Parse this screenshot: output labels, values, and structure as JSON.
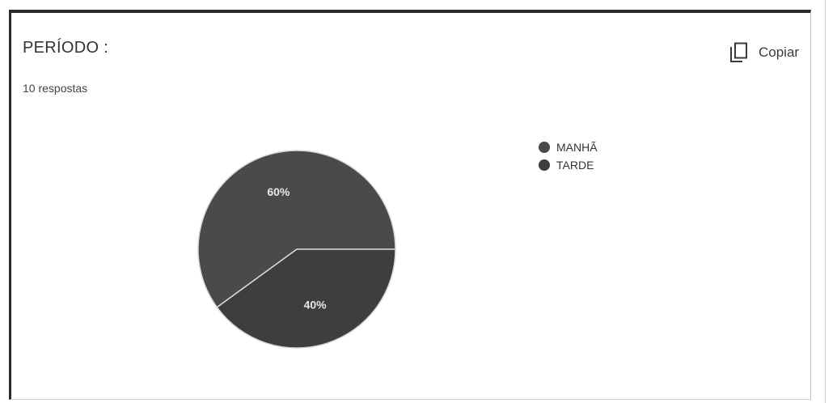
{
  "card": {
    "title": "PERÍODO :",
    "subtitle": "10 respostas",
    "copy_label": "Copiar",
    "copy_icon": "copy-icon"
  },
  "chart_data": {
    "type": "pie",
    "title": "",
    "slices": [
      {
        "label": "MANHÃ",
        "value": 60,
        "display": "60%",
        "color": "#4a4a4a"
      },
      {
        "label": "TARDE",
        "value": 40,
        "display": "40%",
        "color": "#3e3e3e"
      }
    ],
    "legend_position": "right",
    "colors": {
      "edge": "#d8d8d8",
      "label_text": "#e8e8e8"
    }
  },
  "legend": {
    "items": [
      "MANHÃ",
      "TARDE"
    ]
  }
}
